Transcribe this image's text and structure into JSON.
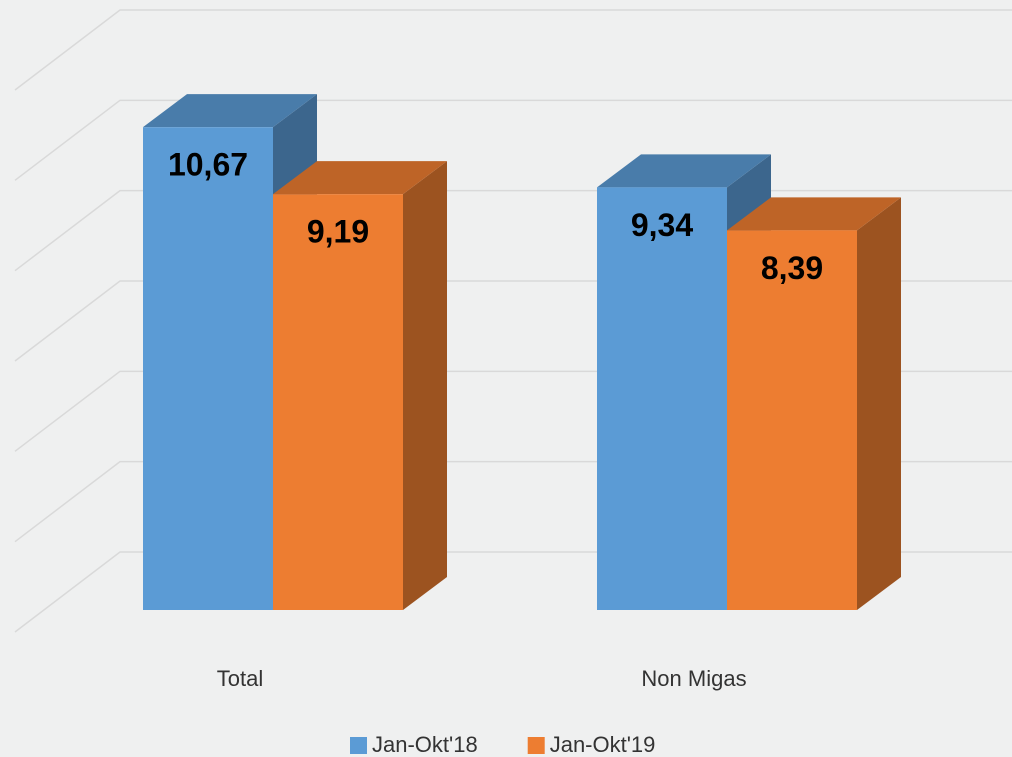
{
  "chart_data": {
    "type": "bar3d",
    "categories": [
      "Total",
      "Non Migas"
    ],
    "series": [
      {
        "name": "Jan-Okt'18",
        "color": "#5b9bd5",
        "values": [
          10.67,
          9.34
        ],
        "value_labels": [
          "10,67",
          "9,34"
        ]
      },
      {
        "name": "Jan-Okt'19",
        "color": "#ed7d31",
        "values": [
          9.19,
          8.39
        ],
        "value_labels": [
          "9,19",
          "8,39"
        ]
      }
    ],
    "ylim": [
      0,
      12
    ],
    "yticks": [
      0,
      2,
      4,
      6,
      8,
      10,
      12
    ],
    "grid": true,
    "legend": "bottom"
  }
}
